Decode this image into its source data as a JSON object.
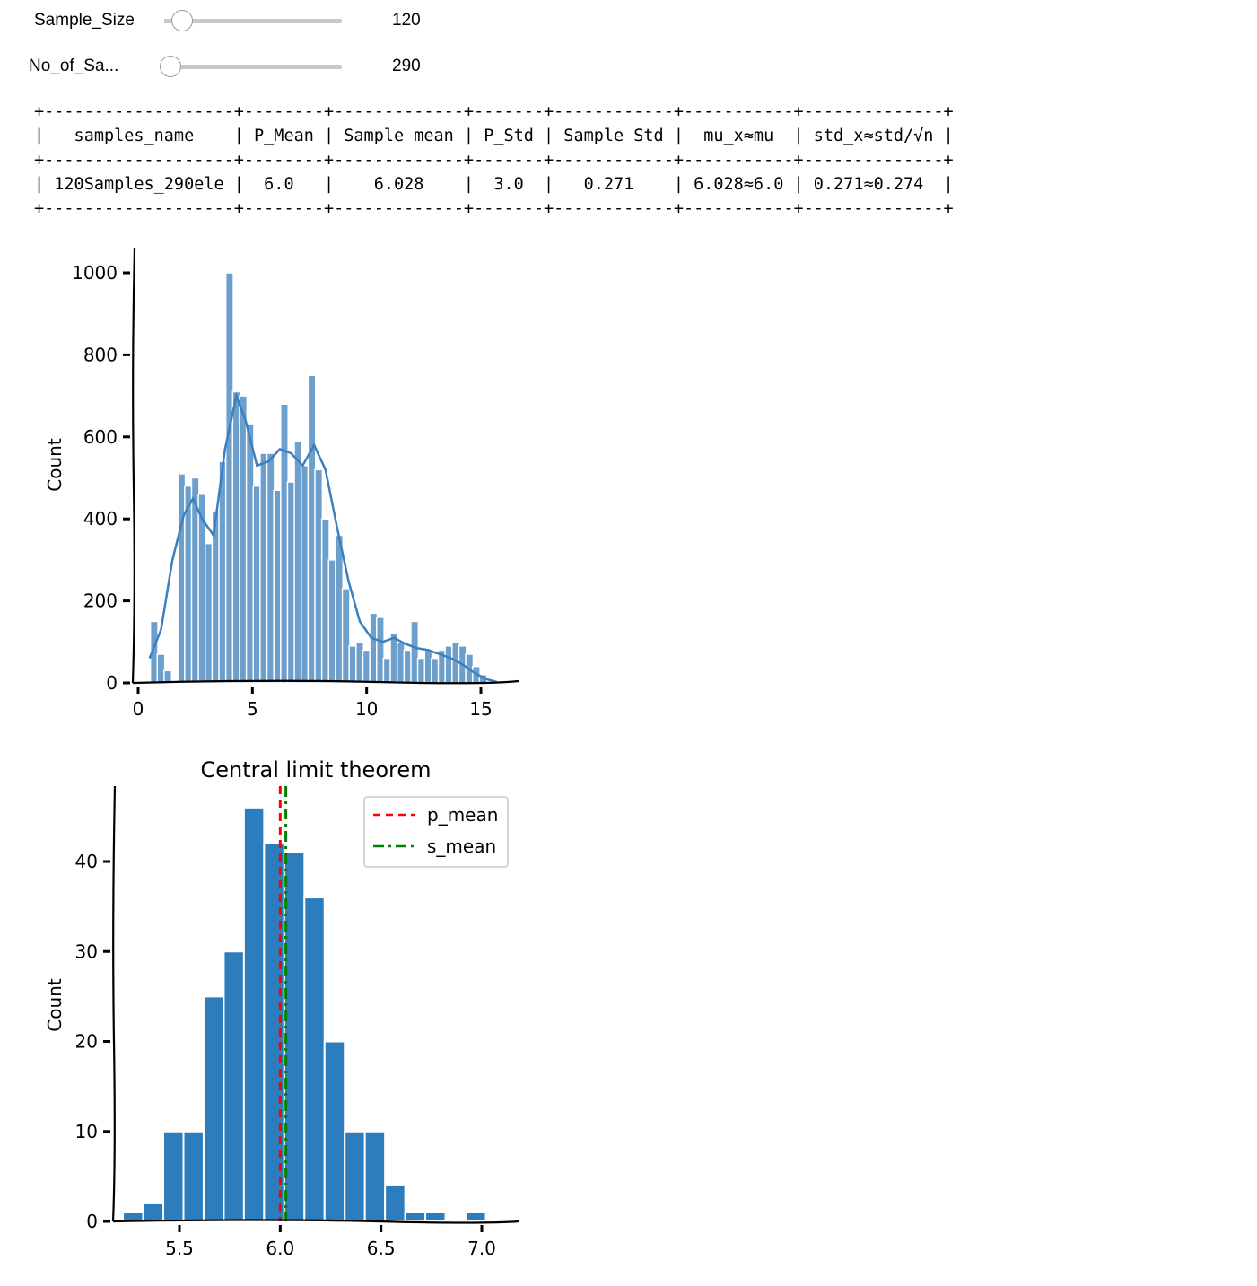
{
  "sliders": [
    {
      "label": "Sample_Size",
      "value": "120",
      "fraction": 0.1
    },
    {
      "label": "No_of_Sa...",
      "value": "290",
      "fraction": 0.0
    }
  ],
  "table": {
    "headers": [
      "samples_name",
      "P_Mean",
      "Sample mean",
      "P_Std",
      "Sample Std",
      "mu_x≈mu",
      "std_x≈std/√n"
    ],
    "rows": [
      [
        "120Samples_290ele",
        "6.0",
        "6.028",
        "3.0",
        "0.271",
        "6.028≈6.0",
        "0.271≈0.274"
      ]
    ]
  },
  "chart_data": [
    {
      "type": "bar",
      "title": "",
      "xlabel": "",
      "ylabel": "Count",
      "xlim": [
        -0.5,
        16.5
      ],
      "ylim": [
        0,
        1000
      ],
      "xticks": [
        0,
        5,
        10,
        15
      ],
      "yticks": [
        0,
        200,
        400,
        600,
        800,
        1000
      ],
      "bin_width": 0.33,
      "bins_x": [
        0.7,
        1.0,
        1.3,
        1.9,
        2.2,
        2.5,
        2.8,
        3.1,
        3.4,
        3.7,
        4.0,
        4.3,
        4.6,
        4.9,
        5.2,
        5.5,
        5.8,
        6.1,
        6.4,
        6.7,
        7.0,
        7.3,
        7.6,
        7.9,
        8.2,
        8.5,
        8.8,
        9.1,
        9.4,
        9.7,
        10.0,
        10.3,
        10.6,
        10.9,
        11.2,
        11.5,
        11.8,
        12.1,
        12.4,
        12.7,
        13.0,
        13.3,
        13.6,
        13.9,
        14.2,
        14.5,
        14.8,
        15.1
      ],
      "bins_y": [
        150,
        70,
        30,
        510,
        480,
        500,
        460,
        340,
        420,
        540,
        1000,
        710,
        700,
        630,
        480,
        560,
        560,
        470,
        680,
        490,
        590,
        530,
        750,
        520,
        400,
        300,
        360,
        230,
        90,
        100,
        80,
        170,
        160,
        60,
        120,
        100,
        80,
        150,
        60,
        80,
        60,
        80,
        90,
        100,
        90,
        70,
        40,
        20
      ],
      "kde_x": [
        0.5,
        1.0,
        1.5,
        2.0,
        2.4,
        2.8,
        3.3,
        3.8,
        4.3,
        4.7,
        5.2,
        5.7,
        6.2,
        6.7,
        7.2,
        7.7,
        8.2,
        8.7,
        9.2,
        9.7,
        10.2,
        10.7,
        11.2,
        11.7,
        12.2,
        12.7,
        13.2,
        13.7,
        14.2,
        14.7,
        15.2,
        15.7
      ],
      "kde_y": [
        60,
        130,
        300,
        410,
        450,
        400,
        360,
        570,
        700,
        640,
        530,
        540,
        570,
        560,
        530,
        580,
        520,
        380,
        250,
        150,
        110,
        100,
        110,
        95,
        85,
        80,
        70,
        60,
        45,
        25,
        10,
        2
      ]
    },
    {
      "type": "bar",
      "title": "Central limit theorem",
      "xlabel": "",
      "ylabel": "Count",
      "xlim": [
        5.2,
        7.1
      ],
      "ylim": [
        0,
        47
      ],
      "xticks": [
        5.5,
        6.0,
        6.5,
        7.0
      ],
      "xtick_labels": [
        "5.5",
        "6.0",
        "6.5",
        "7.0"
      ],
      "yticks": [
        0,
        10,
        20,
        30,
        40
      ],
      "bin_width": 0.1,
      "bins_x": [
        5.27,
        5.37,
        5.47,
        5.57,
        5.67,
        5.77,
        5.87,
        5.97,
        6.07,
        6.17,
        6.27,
        6.37,
        6.47,
        6.57,
        6.67,
        6.77,
        6.87,
        6.97
      ],
      "bins_y": [
        1,
        2,
        10,
        10,
        25,
        30,
        46,
        42,
        41,
        36,
        20,
        10,
        10,
        4,
        1,
        1,
        0,
        1
      ],
      "vlines": [
        {
          "name": "p_mean",
          "x": 6.0,
          "color": "#ff0000",
          "style": "dashed"
        },
        {
          "name": "s_mean",
          "x": 6.028,
          "color": "#008000",
          "style": "dashdot"
        }
      ],
      "legend_position": "top-right"
    }
  ],
  "colors": {
    "hist1_fill": "#6c9fcc",
    "kde_line": "#3a80c0",
    "hist2_fill": "#2d7cbc"
  }
}
